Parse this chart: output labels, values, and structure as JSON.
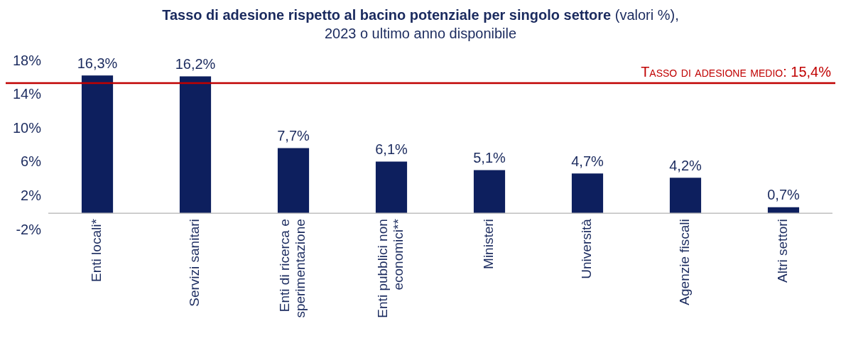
{
  "chart_data": {
    "type": "bar",
    "title": "Tasso di adesione rispetto al bacino potenziale per singolo settore",
    "subtitle": "(valori %), 2023 o ultimo anno disponibile",
    "categories": [
      "Enti locali*",
      "Servizi sanitari",
      "Enti di ricerca e sperimentazione",
      "Enti pubblici non economici**",
      "Ministeri",
      "Università",
      "Agenzie fiscali",
      "Altri settori"
    ],
    "values": [
      16.3,
      16.2,
      7.7,
      6.1,
      5.1,
      4.7,
      4.2,
      0.7
    ],
    "value_labels": [
      "16,3%",
      "16,2%",
      "7,7%",
      "6,1%",
      "5,1%",
      "4,7%",
      "4,2%",
      "0,7%"
    ],
    "color": "#0d1f5e",
    "ylim": [
      -2,
      18
    ],
    "yticks": [
      {
        "value": -2,
        "label": "-2%"
      },
      {
        "value": 2,
        "label": "2%"
      },
      {
        "value": 6,
        "label": "6%"
      },
      {
        "value": 10,
        "label": "10%"
      },
      {
        "value": 14,
        "label": "14%"
      },
      {
        "value": 18,
        "label": "18%"
      }
    ],
    "ref_lines": [
      {
        "axis": "y",
        "value": 15.4,
        "label": "Tasso di adesione medio: 15,4%",
        "color": "#c00000"
      }
    ],
    "grid": false,
    "legend": false
  }
}
